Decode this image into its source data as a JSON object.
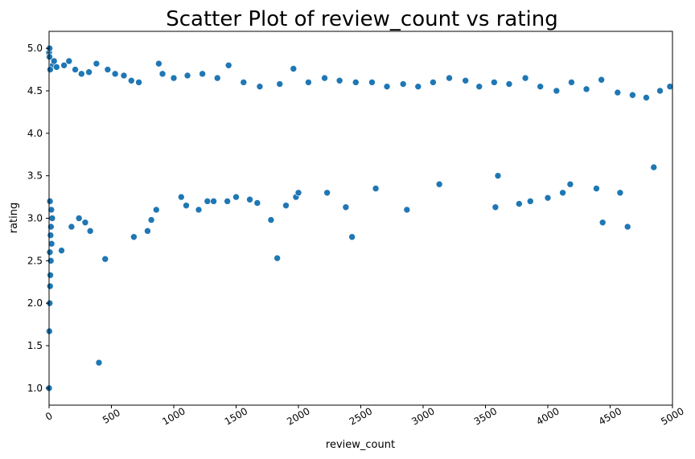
{
  "chart_data": {
    "type": "scatter",
    "title": "Scatter Plot of review_count vs rating",
    "xlabel": "review_count",
    "ylabel": "rating",
    "xlim": [
      0,
      5000
    ],
    "ylim": [
      0.8,
      5.2
    ],
    "xticks": [
      0,
      500,
      1000,
      1500,
      2000,
      2500,
      3000,
      3500,
      4000,
      4500,
      5000
    ],
    "xtick_labels": [
      "0",
      "500",
      "1000",
      "1500",
      "2000",
      "2500",
      "3000",
      "3500",
      "4000",
      "4500",
      "5000"
    ],
    "yticks": [
      1.0,
      1.5,
      2.0,
      2.5,
      3.0,
      3.5,
      4.0,
      4.5,
      5.0
    ],
    "ytick_labels": [
      "1.0",
      "1.5",
      "2.0",
      "2.5",
      "3.0",
      "3.5",
      "4.0",
      "4.5",
      "5.0"
    ],
    "xtick_rotation_deg": 30,
    "grid": false,
    "marker_color": "#1f77b4",
    "marker_edge_color": "#ffffff",
    "series": [
      {
        "x": [
          0,
          0,
          2,
          5,
          8,
          10,
          14,
          3,
          6,
          20,
          30,
          12,
          4,
          9,
          15,
          25,
          40,
          60,
          18,
          7,
          100,
          180,
          240,
          290,
          330,
          450,
          680,
          790,
          820,
          1780,
          1830,
          2430,
          4440,
          4640,
          400,
          120,
          160,
          210,
          260,
          320,
          380,
          470,
          530,
          600,
          660,
          720,
          880,
          910,
          1000,
          1110,
          1230,
          1350,
          1440,
          1560,
          1690,
          1850,
          1960,
          2080,
          2210,
          2330,
          2460,
          2590,
          2710,
          2840,
          2960,
          3080,
          3210,
          3340,
          3450,
          3570,
          3690,
          3820,
          3940,
          4070,
          4190,
          4310,
          4430,
          4560,
          4680,
          4790,
          4900,
          4980,
          860,
          1430,
          1900,
          2230,
          2620,
          3130,
          3580,
          3860,
          4120,
          4390,
          4850,
          3600,
          3770,
          4000,
          4580,
          4180,
          2870,
          2380,
          1980,
          1670,
          1500,
          1270,
          1100,
          1060,
          1200,
          1320,
          1610,
          2000
        ],
        "y": [
          1.0,
          4.95,
          1.67,
          2.0,
          2.2,
          2.33,
          2.5,
          4.9,
          2.6,
          2.7,
          4.8,
          2.8,
          5.0,
          4.75,
          2.9,
          3.0,
          4.85,
          4.78,
          3.1,
          3.2,
          2.62,
          2.9,
          3.0,
          2.95,
          2.85,
          2.52,
          2.78,
          2.85,
          2.98,
          2.98,
          2.53,
          2.78,
          2.95,
          2.9,
          1.3,
          4.8,
          4.85,
          4.75,
          4.7,
          4.72,
          4.82,
          4.75,
          4.7,
          4.68,
          4.62,
          4.6,
          4.82,
          4.7,
          4.65,
          4.68,
          4.7,
          4.65,
          4.8,
          4.6,
          4.55,
          4.58,
          4.76,
          4.6,
          4.65,
          4.62,
          4.6,
          4.6,
          4.55,
          4.58,
          4.55,
          4.6,
          4.65,
          4.62,
          4.55,
          4.6,
          4.58,
          4.65,
          4.55,
          4.5,
          4.6,
          4.52,
          4.63,
          4.48,
          4.45,
          4.42,
          4.5,
          4.55,
          3.1,
          3.2,
          3.15,
          3.3,
          3.35,
          3.4,
          3.13,
          3.2,
          3.3,
          3.35,
          3.6,
          3.5,
          3.17,
          3.24,
          3.3,
          3.4,
          3.1,
          3.13,
          3.25,
          3.18,
          3.25,
          3.2,
          3.15,
          3.25,
          3.1,
          3.2,
          3.22,
          3.3
        ]
      }
    ]
  }
}
